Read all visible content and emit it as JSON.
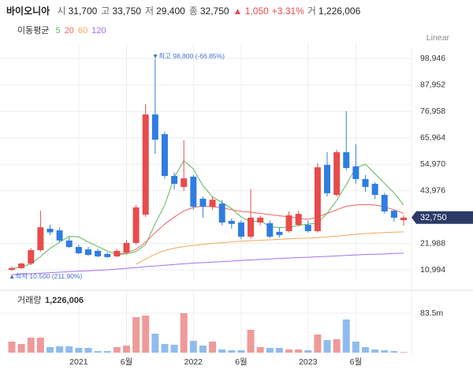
{
  "header": {
    "name": "바이오니아",
    "items": [
      {
        "label": "시",
        "value": "31,700"
      },
      {
        "label": "고",
        "value": "33,750"
      },
      {
        "label": "저",
        "value": "29,400"
      },
      {
        "label": "종",
        "value": "32,750"
      }
    ],
    "change": "▲ 1,050",
    "change_pct": "+3.31%",
    "volume_label": "거",
    "volume": "1,226,006"
  },
  "chart_data": {
    "type": "candlestick",
    "scale_label": "Linear",
    "categories": [
      null,
      null,
      null,
      null,
      null,
      null,
      null,
      "2021",
      null,
      null,
      null,
      null,
      "6월",
      null,
      null,
      null,
      null,
      null,
      null,
      "2022",
      null,
      null,
      null,
      null,
      "6월",
      null,
      null,
      null,
      null,
      null,
      null,
      "2023",
      null,
      null,
      null,
      null,
      "6월",
      null,
      null,
      null,
      null,
      null
    ],
    "open": [
      11000,
      11700,
      13600,
      19200,
      28100,
      27400,
      23200,
      20500,
      19500,
      18900,
      17600,
      16600,
      18200,
      22200,
      34000,
      75700,
      67500,
      50100,
      45500,
      49800,
      40600,
      37300,
      38600,
      31400,
      30700,
      24800,
      30700,
      30400,
      26800,
      27100,
      29700,
      29700,
      27100,
      54700,
      42200,
      60000,
      54100,
      48800,
      46800,
      42200,
      35600,
      31700
    ],
    "high": [
      12400,
      14000,
      20000,
      35600,
      29800,
      28600,
      24500,
      21500,
      20500,
      19800,
      18300,
      19600,
      23500,
      38000,
      80000,
      98800,
      68500,
      51500,
      64900,
      50500,
      41500,
      41500,
      40000,
      32500,
      31500,
      44500,
      33500,
      31500,
      28500,
      35300,
      35500,
      31500,
      55500,
      60000,
      61000,
      77100,
      63300,
      50500,
      47500,
      43000,
      36000,
      33750
    ],
    "low": [
      10500,
      11300,
      13000,
      18500,
      25500,
      22500,
      20000,
      17500,
      16800,
      16200,
      15900,
      16200,
      17800,
      21500,
      33000,
      59300,
      49000,
      44500,
      44000,
      36000,
      32700,
      36000,
      29500,
      28100,
      23800,
      24000,
      29500,
      24200,
      24500,
      26500,
      29000,
      26500,
      26500,
      41500,
      41500,
      52500,
      47000,
      43500,
      40500,
      34500,
      31000,
      29400
    ],
    "close": [
      11700,
      13600,
      19200,
      28700,
      26600,
      23200,
      20500,
      17900,
      17200,
      16600,
      16300,
      18900,
      22200,
      37000,
      75700,
      65200,
      50100,
      46800,
      49100,
      37300,
      37300,
      40200,
      30700,
      30100,
      24800,
      32700,
      32700,
      24800,
      25500,
      33700,
      34300,
      27100,
      53700,
      42900,
      60000,
      53400,
      48800,
      45500,
      42200,
      35300,
      32700,
      32750
    ],
    "up_color": "#e84b4b",
    "down_color": "#2f7de1",
    "ylim": [
      6721,
      103678
    ],
    "yticks": [
      {
        "value": 10994,
        "label": "10,994"
      },
      {
        "value": 21988,
        "label": "21,988"
      },
      {
        "value": 43976,
        "label": "43,976"
      },
      {
        "value": 54970,
        "label": "54,970"
      },
      {
        "value": 65964,
        "label": "65,964"
      },
      {
        "value": 76958,
        "label": "76,958"
      },
      {
        "value": 87952,
        "label": "87,952"
      },
      {
        "value": 98946,
        "label": "98,946"
      }
    ],
    "grid": true,
    "high_annotation": "▼최고 98,800 (-66.85%)",
    "low_annotation": "▲최저 10,500 (211.90%)",
    "current_price": {
      "value": 32750,
      "label": "32,750"
    },
    "moving_average_title": "이동평균",
    "series": [
      {
        "name": "5",
        "color": "#5cb85c",
        "values": [
          11500,
          12200,
          13500,
          16500,
          19900,
          22500,
          24900,
          24700,
          22600,
          20700,
          18800,
          17400,
          17600,
          18600,
          21500,
          30200,
          38000,
          49500,
          56500,
          53000,
          46000,
          41400,
          39000,
          36500,
          33000,
          31000,
          31500,
          29000,
          28500,
          28800,
          29500,
          30000,
          30500,
          34500,
          40000,
          46500,
          53500,
          55000,
          51000,
          47000,
          43000,
          38000
        ]
      },
      {
        "name": "20",
        "color": "#f06262",
        "values": [
          null,
          null,
          null,
          null,
          null,
          null,
          null,
          null,
          null,
          null,
          null,
          17500,
          18000,
          19500,
          22500,
          26500,
          30000,
          33000,
          35500,
          37000,
          37500,
          37300,
          36800,
          36000,
          35300,
          35000,
          34500,
          34000,
          33500,
          33000,
          32500,
          32000,
          33000,
          34500,
          36000,
          37500,
          38000,
          38200,
          38000,
          37200,
          36000,
          34500
        ]
      },
      {
        "name": "60",
        "color": "#f5a55b",
        "values": [
          null,
          null,
          null,
          null,
          null,
          null,
          null,
          null,
          null,
          null,
          null,
          null,
          null,
          13300,
          15500,
          17500,
          19000,
          20000,
          20700,
          21200,
          21600,
          22000,
          22300,
          22600,
          22900,
          23100,
          23300,
          23500,
          23700,
          23900,
          24100,
          24200,
          24400,
          24700,
          25000,
          25400,
          25800,
          26100,
          26300,
          26500,
          26700,
          26800
        ]
      },
      {
        "name": "120",
        "color": "#a86ef0",
        "values": [
          9000,
          9200,
          9400,
          9600,
          9800,
          10000,
          10200,
          10400,
          10600,
          10800,
          11000,
          11300,
          11600,
          11900,
          12300,
          12600,
          12900,
          13200,
          13500,
          13800,
          14000,
          14200,
          14400,
          14600,
          14900,
          15100,
          15300,
          15500,
          15700,
          15900,
          16100,
          16200,
          16400,
          16600,
          16800,
          17000,
          17200,
          17400,
          17500,
          17600,
          17800,
          17900
        ]
      }
    ],
    "volume": {
      "title": "거래량",
      "title_value": "1,226,006",
      "values": [
        23400000,
        18400000,
        31700000,
        31700000,
        11700000,
        13400000,
        13400000,
        10000000,
        10000000,
        3300000,
        3300000,
        11700000,
        15000000,
        75200000,
        78500000,
        40100000,
        18400000,
        16700000,
        83500000,
        25000000,
        15000000,
        23400000,
        6700000,
        5000000,
        5000000,
        48400000,
        11700000,
        10000000,
        10000000,
        6700000,
        6700000,
        5000000,
        38400000,
        26700000,
        28400000,
        70100000,
        23400000,
        11700000,
        6700000,
        5000000,
        3300000,
        1226006
      ],
      "up_color": "#ef9a9a",
      "down_color": "#8fbcef",
      "ylim": [
        0,
        120200000
      ],
      "yticks": [
        {
          "value": 83500000,
          "label": "83.5m"
        }
      ]
    }
  }
}
